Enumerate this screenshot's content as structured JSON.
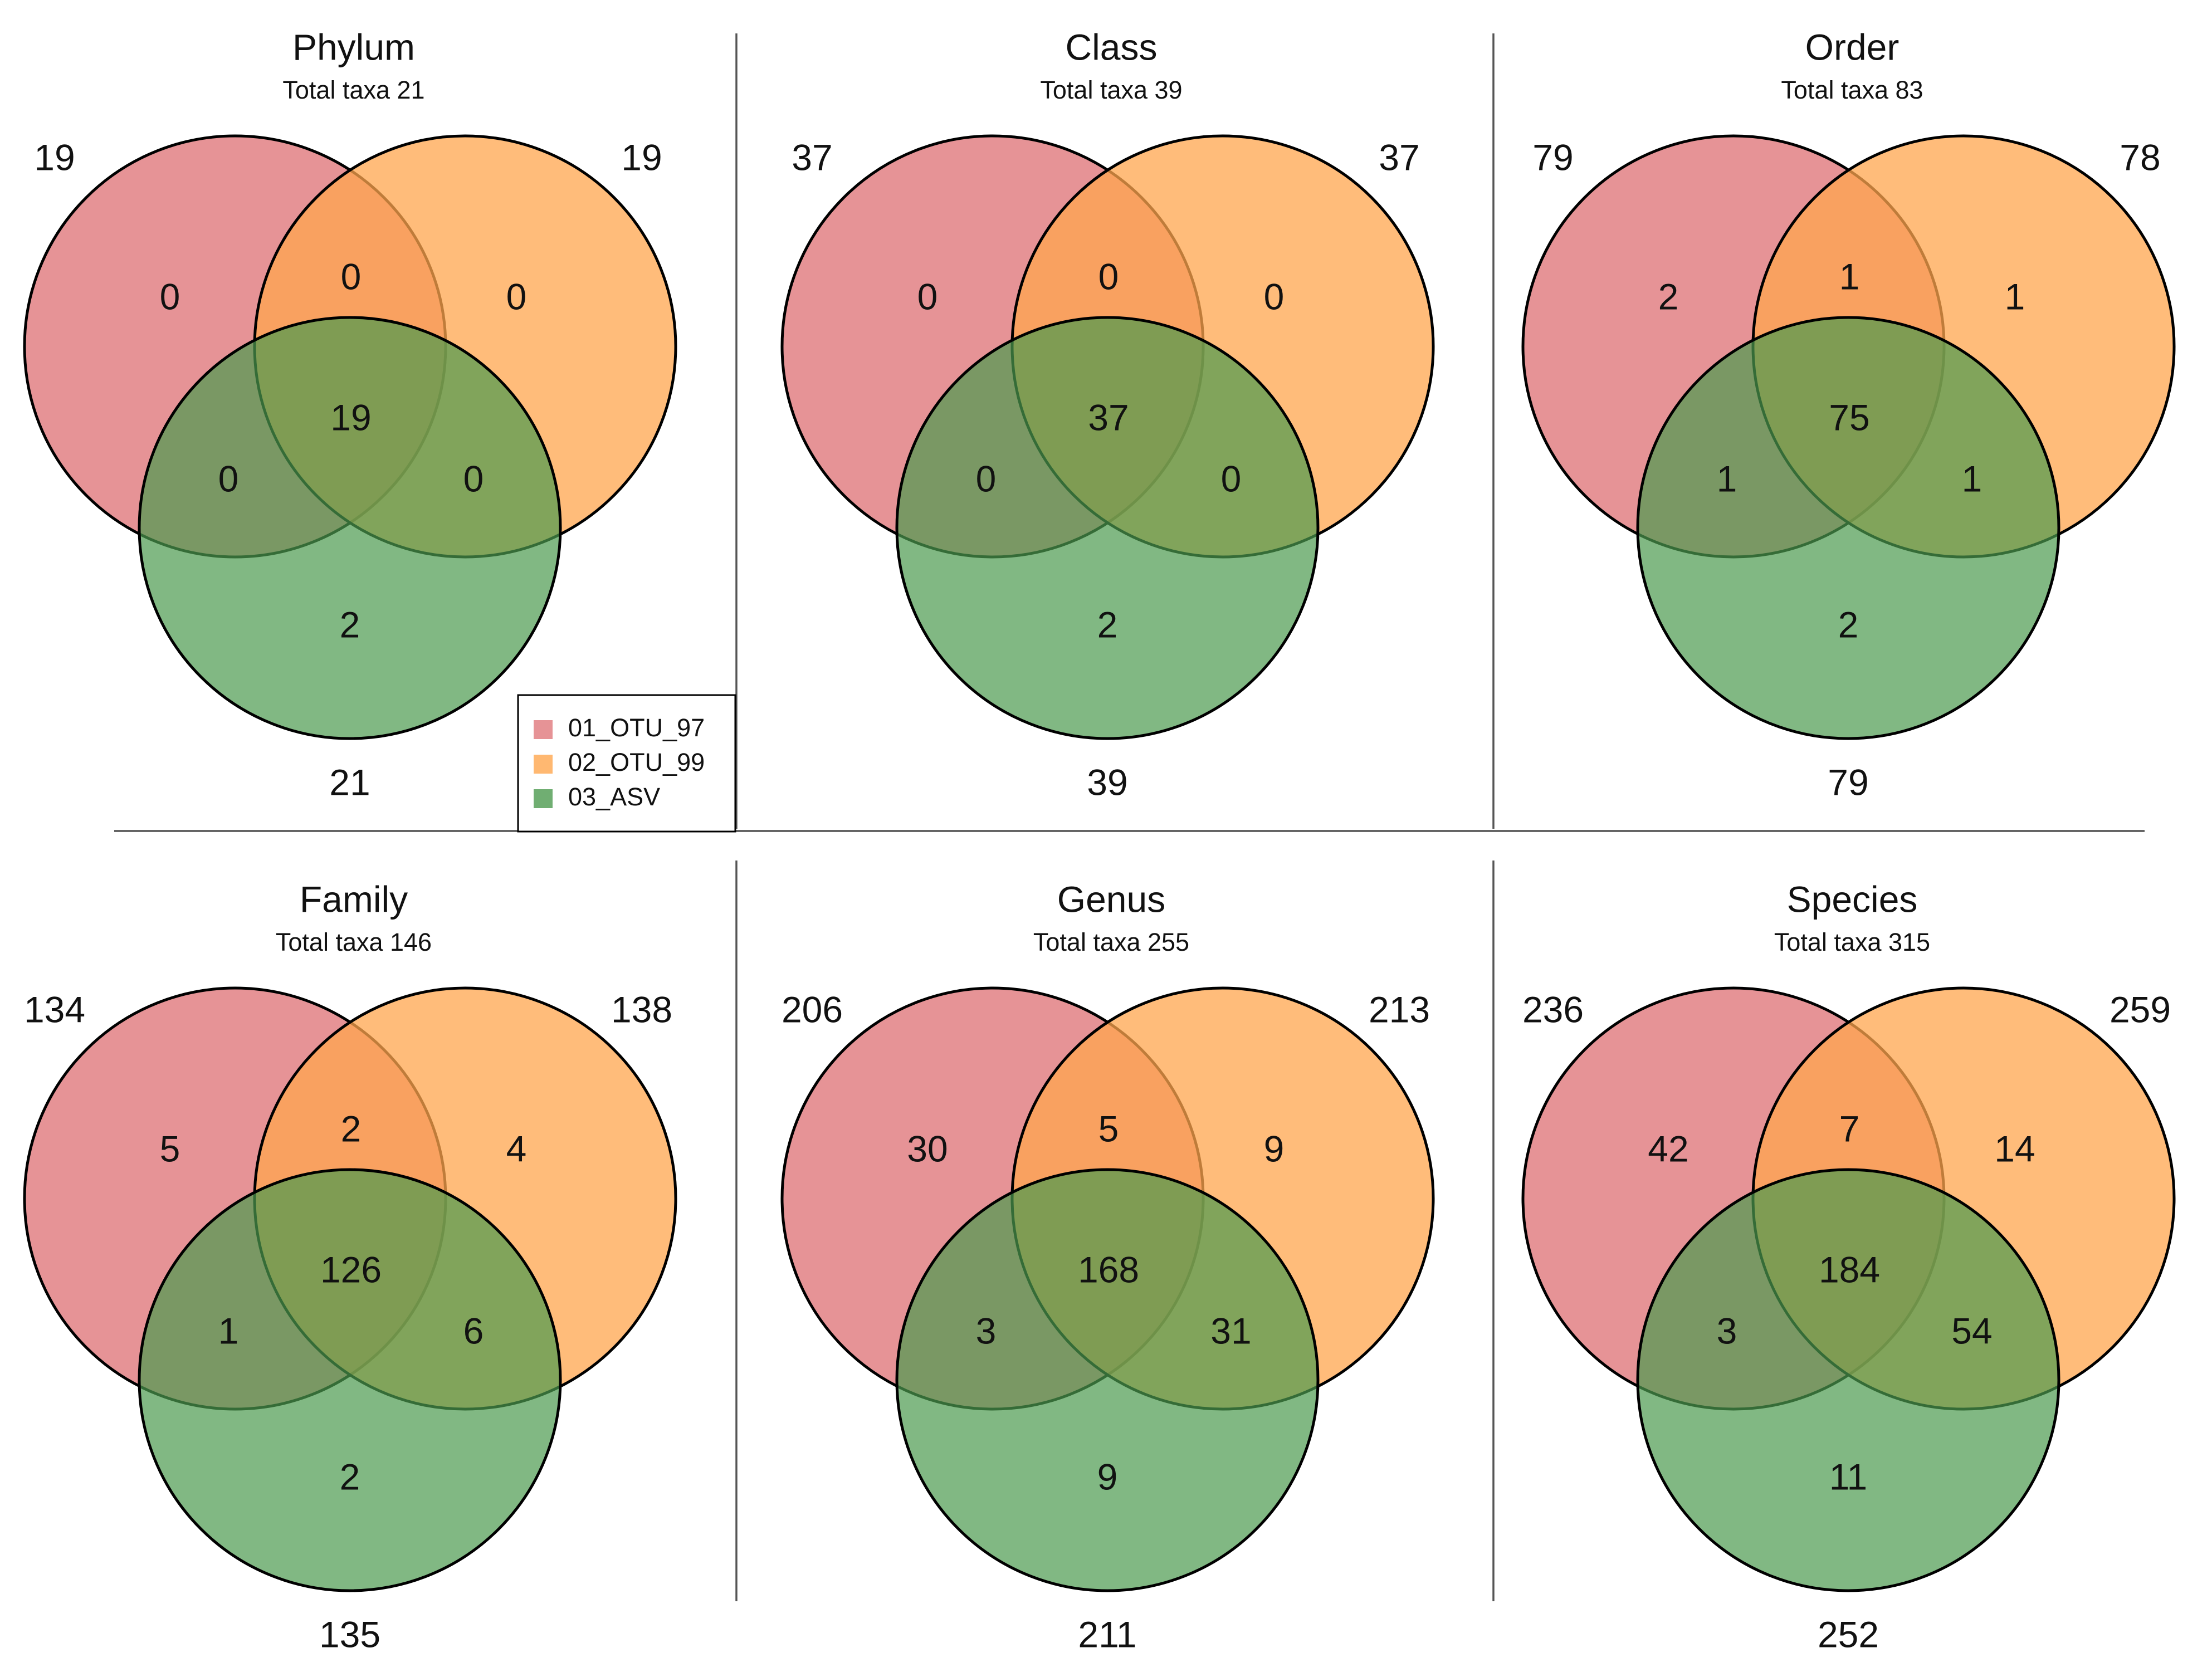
{
  "chart_data": {
    "type": "venn",
    "sets": [
      {
        "name": "01_OTU_97",
        "color": "#e0787c"
      },
      {
        "name": "02_OTU_99",
        "color": "#ffa64d"
      },
      {
        "name": "03_ASV",
        "color": "#4c9a4f"
      }
    ],
    "legend": {
      "placement": "bottom-right of first panel",
      "entries": [
        "01_OTU_97",
        "02_OTU_99",
        "03_ASV"
      ]
    },
    "panels": [
      {
        "title": "Phylum",
        "subtitle": "Total taxa 21",
        "set_totals": {
          "a": "19",
          "b": "19",
          "c": "21"
        },
        "regions": {
          "a_only": "0",
          "b_only": "0",
          "c_only": "2",
          "ab": "0",
          "ac": "0",
          "bc": "0",
          "abc": "19"
        }
      },
      {
        "title": "Class",
        "subtitle": "Total taxa 39",
        "set_totals": {
          "a": "37",
          "b": "37",
          "c": "39"
        },
        "regions": {
          "a_only": "0",
          "b_only": "0",
          "c_only": "2",
          "ab": "0",
          "ac": "0",
          "bc": "0",
          "abc": "37"
        }
      },
      {
        "title": "Order",
        "subtitle": "Total taxa 83",
        "set_totals": {
          "a": "79",
          "b": "78",
          "c": "79"
        },
        "regions": {
          "a_only": "2",
          "b_only": "1",
          "c_only": "2",
          "ab": "1",
          "ac": "1",
          "bc": "1",
          "abc": "75"
        }
      },
      {
        "title": "Family",
        "subtitle": "Total taxa 146",
        "set_totals": {
          "a": "134",
          "b": "138",
          "c": "135"
        },
        "regions": {
          "a_only": "5",
          "b_only": "4",
          "c_only": "2",
          "ab": "2",
          "ac": "1",
          "bc": "6",
          "abc": "126"
        }
      },
      {
        "title": "Genus",
        "subtitle": "Total taxa 255",
        "set_totals": {
          "a": "206",
          "b": "213",
          "c": "211"
        },
        "regions": {
          "a_only": "30",
          "b_only": "9",
          "c_only": "9",
          "ab": "5",
          "ac": "3",
          "bc": "31",
          "abc": "168"
        }
      },
      {
        "title": "Species",
        "subtitle": "Total taxa 315",
        "set_totals": {
          "a": "236",
          "b": "259",
          "c": "252"
        },
        "regions": {
          "a_only": "42",
          "b_only": "14",
          "c_only": "11",
          "ab": "7",
          "ac": "3",
          "bc": "54",
          "abc": "184"
        }
      }
    ]
  }
}
